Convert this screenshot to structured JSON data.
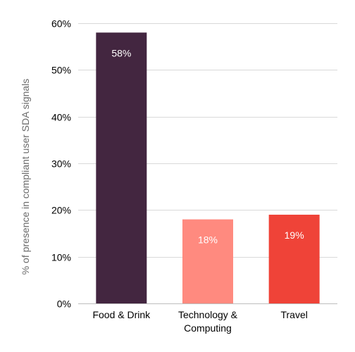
{
  "chart_data": {
    "type": "bar",
    "categories": [
      "Food & Drink",
      "Technology & Computing",
      "Travel"
    ],
    "category_label_lines": [
      [
        "Food & Drink"
      ],
      [
        "Technology &",
        "Computing"
      ],
      [
        "Travel"
      ]
    ],
    "values": [
      58,
      18,
      19
    ],
    "data_labels": [
      "58%",
      "18%",
      "19%"
    ],
    "bar_colors": [
      "#432640",
      "#ff8a7f",
      "#ef4338"
    ],
    "ylabel": "% of presence in compliant user SDA signals",
    "ylim": [
      0,
      60
    ],
    "yticks": [
      0,
      10,
      20,
      30,
      40,
      50,
      60
    ],
    "ytick_labels": [
      "0%",
      "10%",
      "20%",
      "30%",
      "40%",
      "50%",
      "60%"
    ],
    "grid": true,
    "grid_color": "#d9d9d9"
  }
}
